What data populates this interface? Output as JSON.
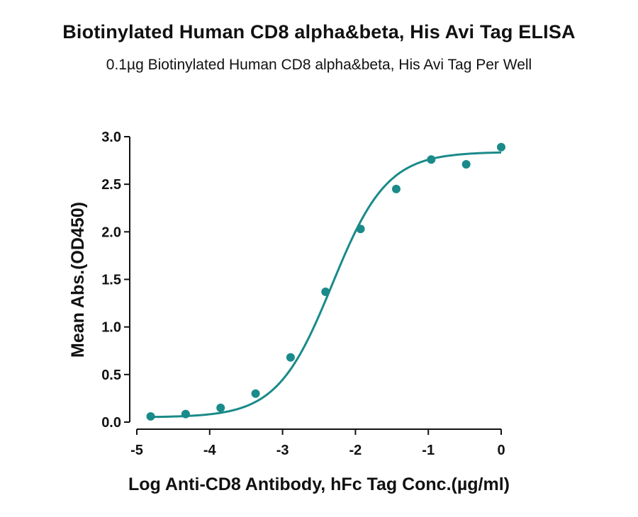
{
  "chart_data": {
    "type": "scatter",
    "title": "Biotinylated Human CD8 alpha&beta, His Avi Tag ELISA",
    "subtitle": "0.1µg Biotinylated Human CD8 alpha&beta, His Avi Tag Per Well",
    "xlabel": "Log Anti-CD8 Antibody, hFc Tag Conc.(µg/ml)",
    "ylabel": "Mean Abs.(OD450)",
    "xlim": [
      -5,
      0
    ],
    "ylim": [
      0,
      3.0
    ],
    "xticks": [
      -5,
      -4,
      -3,
      -2,
      -1,
      0
    ],
    "xtick_labels": [
      "-5",
      "-4",
      "-3",
      "-2",
      "-1",
      "0"
    ],
    "yticks": [
      0,
      0.5,
      1.0,
      1.5,
      2.0,
      2.5,
      3.0
    ],
    "ytick_labels": [
      "0.0",
      "0.5",
      "1.0",
      "1.5",
      "2.0",
      "2.5",
      "3.0"
    ],
    "grid": false,
    "legend": "none",
    "color": "#1a8a8a",
    "series": [
      {
        "x": [
          -4.81,
          -4.33,
          -3.85,
          -3.37,
          -2.89,
          -2.41,
          -1.93,
          -1.44,
          -0.96,
          -0.48,
          0.0
        ],
        "values": [
          0.06,
          0.085,
          0.15,
          0.3,
          0.68,
          1.37,
          2.03,
          2.45,
          2.76,
          2.71,
          2.89
        ]
      }
    ],
    "fit": {
      "model": "4PL",
      "bottom": 0.05,
      "top": 2.84,
      "ec50_log": -2.32,
      "hill": 1.15
    }
  }
}
